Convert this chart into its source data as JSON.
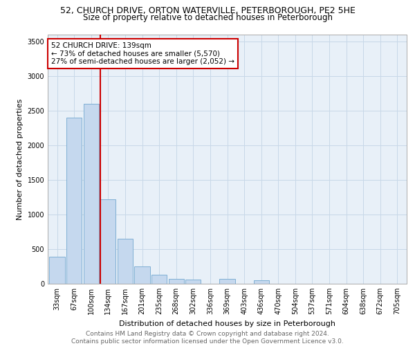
{
  "title_line1": "52, CHURCH DRIVE, ORTON WATERVILLE, PETERBOROUGH, PE2 5HE",
  "title_line2": "Size of property relative to detached houses in Peterborough",
  "xlabel": "Distribution of detached houses by size in Peterborough",
  "ylabel": "Number of detached properties",
  "categories": [
    "33sqm",
    "67sqm",
    "100sqm",
    "134sqm",
    "167sqm",
    "201sqm",
    "235sqm",
    "268sqm",
    "302sqm",
    "336sqm",
    "369sqm",
    "403sqm",
    "436sqm",
    "470sqm",
    "504sqm",
    "537sqm",
    "571sqm",
    "604sqm",
    "638sqm",
    "672sqm",
    "705sqm"
  ],
  "values": [
    390,
    2400,
    2600,
    1220,
    650,
    255,
    130,
    75,
    60,
    0,
    75,
    0,
    50,
    0,
    0,
    0,
    0,
    0,
    0,
    0,
    0
  ],
  "bar_color": "#c5d8ee",
  "bar_edge_color": "#7fafd4",
  "vline_color": "#cc0000",
  "annotation_text": "52 CHURCH DRIVE: 139sqm\n← 73% of detached houses are smaller (5,570)\n27% of semi-detached houses are larger (2,052) →",
  "annotation_box_color": "#ffffff",
  "annotation_box_edge": "#cc0000",
  "ylim": [
    0,
    3600
  ],
  "yticks": [
    0,
    500,
    1000,
    1500,
    2000,
    2500,
    3000,
    3500
  ],
  "grid_color": "#c8d8e8",
  "background_color": "#e8f0f8",
  "footnote": "Contains HM Land Registry data © Crown copyright and database right 2024.\nContains public sector information licensed under the Open Government Licence v3.0.",
  "title_fontsize": 9,
  "subtitle_fontsize": 8.5,
  "axis_label_fontsize": 8,
  "tick_fontsize": 7,
  "annot_fontsize": 7.5,
  "footnote_fontsize": 6.5
}
